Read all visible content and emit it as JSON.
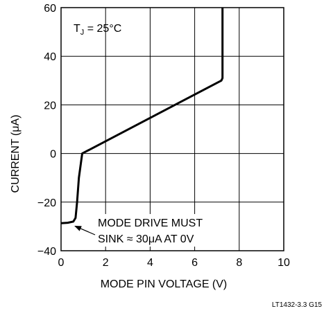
{
  "chart_data": {
    "type": "line",
    "title": "",
    "xlabel": "MODE PIN VOLTAGE (V)",
    "ylabel": "CURRENT (μA)",
    "xlim": [
      0,
      10
    ],
    "ylim": [
      -40,
      60
    ],
    "xticks": [
      0,
      2,
      4,
      6,
      8,
      10
    ],
    "yticks": [
      -40,
      -20,
      0,
      20,
      40,
      60
    ],
    "xtick_labels": [
      "0",
      "2",
      "4",
      "6",
      "8",
      "10"
    ],
    "ytick_labels": [
      "−40",
      "−20",
      "0",
      "20",
      "40",
      "60"
    ],
    "grid": true,
    "series": [
      {
        "x": [
          0,
          0.3,
          0.55,
          0.65,
          0.72,
          0.8,
          0.95,
          7.2,
          7.25,
          7.25
        ],
        "y": [
          -28.7,
          -28.5,
          -28,
          -26.5,
          -20,
          -10,
          0,
          30,
          31,
          60
        ]
      }
    ],
    "annotations": {
      "condition_main": "T",
      "condition_sub": "J",
      "condition_rest": " = 25°C",
      "note_line1": "MODE DRIVE MUST",
      "note_line2": "SINK ≈ 30μA AT 0V",
      "note_arrow_target": [
        0.5,
        -29
      ]
    },
    "figure_id": "LT1432-3.3 G15"
  }
}
